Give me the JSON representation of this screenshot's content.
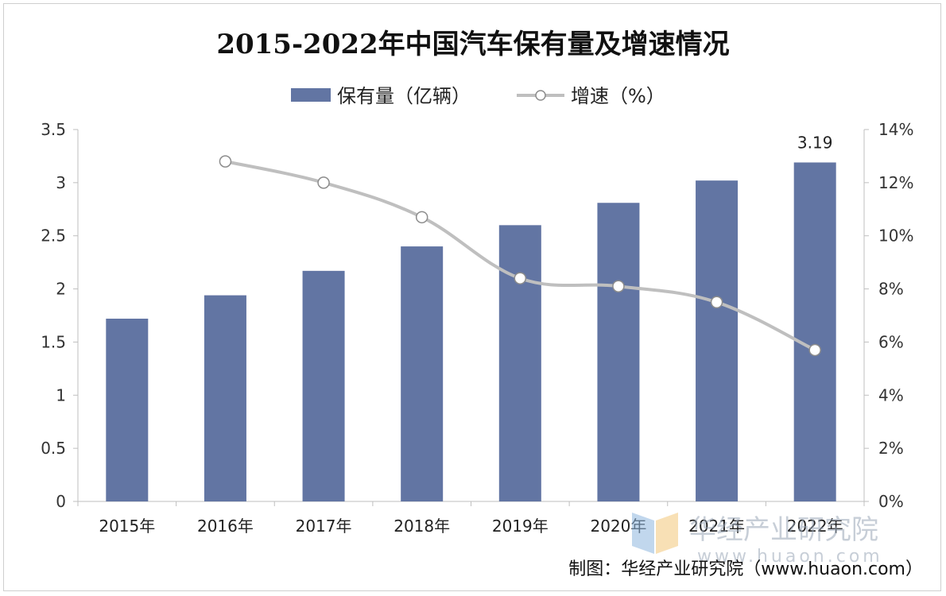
{
  "chart_data": {
    "type": "bar",
    "title": "2015-2022年中国汽车保有量及增速情况",
    "categories": [
      "2015年",
      "2016年",
      "2017年",
      "2018年",
      "2019年",
      "2020年",
      "2021年",
      "2022年"
    ],
    "series": [
      {
        "name": "保有量（亿辆）",
        "type": "bar",
        "axis": "left",
        "values": [
          1.72,
          1.94,
          2.17,
          2.4,
          2.6,
          2.81,
          3.02,
          3.19
        ],
        "color": "#6275a3"
      },
      {
        "name": "增速（%）",
        "type": "line",
        "axis": "right",
        "values": [
          null,
          12.8,
          12.0,
          10.7,
          8.4,
          8.1,
          7.5,
          5.7
        ],
        "color": "#bfbfbf"
      }
    ],
    "data_labels": [
      {
        "index": 7,
        "text": "3.19"
      }
    ],
    "y_left": {
      "ylim": [
        0,
        3.5
      ],
      "ticks": [
        "0",
        "0.5",
        "1",
        "1.5",
        "2",
        "2.5",
        "3",
        "3.5"
      ],
      "tick_values": [
        0,
        0.5,
        1,
        1.5,
        2,
        2.5,
        3,
        3.5
      ]
    },
    "y_right": {
      "ylim": [
        0,
        14
      ],
      "ticks": [
        "0%",
        "2%",
        "4%",
        "6%",
        "8%",
        "10%",
        "12%",
        "14%"
      ],
      "tick_values": [
        0,
        2,
        4,
        6,
        8,
        10,
        12,
        14
      ]
    },
    "grid": false,
    "legend": "top-center"
  },
  "source_text": "制图：华经产业研究院（www.huaon.com）",
  "watermark": {
    "name": "华经产业研究院",
    "url": "www.huaon.com"
  }
}
